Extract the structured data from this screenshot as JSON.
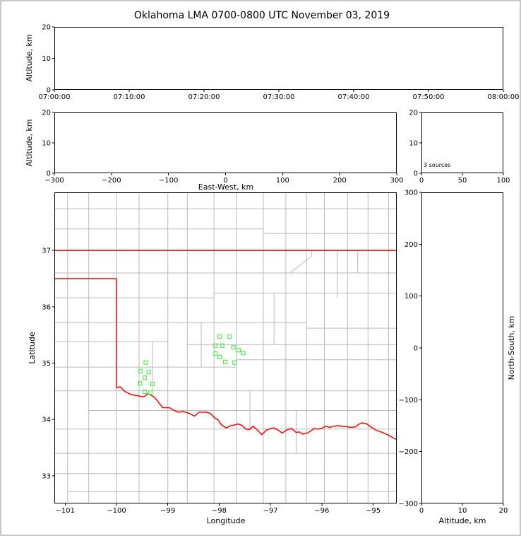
{
  "title": "Oklahoma LMA 0700-0800 UTC November 03, 2019",
  "colors": {
    "background": "#ffffff",
    "frame": "#c9c9c9",
    "axis": "#000000",
    "county_line": "#b9b9b9",
    "state_border": "#ff0000",
    "station_marker": "#5ce85c"
  },
  "chart_data": [
    {
      "id": "time_height",
      "type": "scatter",
      "ylabel": "Altitude, km",
      "ylim": [
        0,
        20
      ],
      "yticks": [
        0,
        10,
        20
      ],
      "xtick_labels": [
        "07:00:00",
        "07:10:00",
        "07:20:00",
        "07:30:00",
        "07:40:00",
        "07:50:00",
        "08:00:00"
      ],
      "xlim": [
        0,
        3600
      ],
      "points": []
    },
    {
      "id": "ew_height",
      "type": "scatter",
      "xlabel": "East-West, km",
      "ylabel": "Altitude, km",
      "xlim": [
        -300,
        300
      ],
      "xticks": [
        -300,
        -200,
        -100,
        0,
        100,
        200,
        300
      ],
      "ylim": [
        0,
        20
      ],
      "yticks": [
        0,
        10,
        20
      ],
      "points": []
    },
    {
      "id": "alt_histogram",
      "type": "line",
      "annotation": "3 sources",
      "xlim": [
        0,
        100
      ],
      "xticks": [
        0,
        50,
        100
      ],
      "ylim": [
        0,
        20
      ],
      "yticks": [
        0,
        10,
        20
      ],
      "points": []
    },
    {
      "id": "plan_view",
      "type": "scatter",
      "xlabel": "Longitude",
      "ylabel": "Latitude",
      "xlim": [
        -101.21,
        -94.54
      ],
      "xticks": [
        -101,
        -100,
        -99,
        -98,
        -97,
        -96,
        -95
      ],
      "ylim": [
        32.51,
        38.03
      ],
      "yticks": [
        33,
        34,
        35,
        36,
        37
      ],
      "stations": [
        [
          -99.43,
          35.01
        ],
        [
          -99.53,
          34.86
        ],
        [
          -99.37,
          34.84
        ],
        [
          -99.45,
          34.74
        ],
        [
          -99.54,
          34.64
        ],
        [
          -99.3,
          34.63
        ],
        [
          -99.45,
          34.49
        ],
        [
          -99.34,
          34.48
        ],
        [
          -97.99,
          35.47
        ],
        [
          -97.8,
          35.47
        ],
        [
          -98.07,
          35.31
        ],
        [
          -97.94,
          35.31
        ],
        [
          -97.72,
          35.28
        ],
        [
          -97.62,
          35.23
        ],
        [
          -97.53,
          35.18
        ],
        [
          -98.07,
          35.17
        ],
        [
          -97.99,
          35.11
        ],
        [
          -97.88,
          35.02
        ],
        [
          -97.7,
          35.01
        ]
      ],
      "state_border": [
        [
          [
            -101.21,
            37.0
          ],
          [
            -94.54,
            37.0
          ]
        ],
        [
          [
            -101.21,
            36.5
          ],
          [
            -100.0,
            36.5
          ],
          [
            -100.0,
            34.56
          ],
          [
            -99.93,
            34.58
          ],
          [
            -99.84,
            34.5
          ],
          [
            -99.71,
            34.44
          ],
          [
            -99.58,
            34.42
          ],
          [
            -99.47,
            34.4
          ],
          [
            -99.38,
            34.46
          ],
          [
            -99.27,
            34.4
          ],
          [
            -99.21,
            34.34
          ],
          [
            -99.1,
            34.21
          ],
          [
            -98.97,
            34.21
          ],
          [
            -98.87,
            34.16
          ],
          [
            -98.8,
            34.13
          ],
          [
            -98.7,
            34.14
          ],
          [
            -98.61,
            34.12
          ],
          [
            -98.48,
            34.06
          ],
          [
            -98.39,
            34.13
          ],
          [
            -98.26,
            34.13
          ],
          [
            -98.17,
            34.11
          ],
          [
            -98.09,
            34.03
          ],
          [
            -98.02,
            33.99
          ],
          [
            -97.95,
            33.9
          ],
          [
            -97.86,
            33.85
          ],
          [
            -97.78,
            33.89
          ],
          [
            -97.71,
            33.9
          ],
          [
            -97.63,
            33.92
          ],
          [
            -97.56,
            33.9
          ],
          [
            -97.48,
            33.83
          ],
          [
            -97.41,
            33.82
          ],
          [
            -97.34,
            33.88
          ],
          [
            -97.25,
            33.81
          ],
          [
            -97.17,
            33.73
          ],
          [
            -97.08,
            33.81
          ],
          [
            -97.0,
            33.84
          ],
          [
            -96.93,
            33.85
          ],
          [
            -96.85,
            33.81
          ],
          [
            -96.77,
            33.76
          ],
          [
            -96.67,
            33.82
          ],
          [
            -96.59,
            33.84
          ],
          [
            -96.5,
            33.77
          ],
          [
            -96.44,
            33.78
          ],
          [
            -96.37,
            33.74
          ],
          [
            -96.28,
            33.76
          ],
          [
            -96.21,
            33.8
          ],
          [
            -96.15,
            33.84
          ],
          [
            -96.07,
            33.83
          ],
          [
            -96.0,
            33.84
          ],
          [
            -95.93,
            33.88
          ],
          [
            -95.85,
            33.86
          ],
          [
            -95.76,
            33.88
          ],
          [
            -95.68,
            33.89
          ],
          [
            -95.6,
            33.88
          ],
          [
            -95.5,
            33.87
          ],
          [
            -95.44,
            33.86
          ],
          [
            -95.34,
            33.87
          ],
          [
            -95.29,
            33.91
          ],
          [
            -95.22,
            33.94
          ],
          [
            -95.12,
            33.92
          ],
          [
            -95.05,
            33.87
          ],
          [
            -94.94,
            33.81
          ],
          [
            -94.82,
            33.77
          ],
          [
            -94.72,
            33.73
          ],
          [
            -94.54,
            33.64
          ]
        ]
      ],
      "county_lines": [
        [
          [
            -100.95,
            32.51
          ],
          [
            -100.95,
            38.03
          ]
        ],
        [
          [
            -100.54,
            32.51
          ],
          [
            -100.54,
            38.03
          ]
        ],
        [
          [
            -100.0,
            32.51
          ],
          [
            -100.0,
            38.03
          ]
        ],
        [
          [
            -99.56,
            32.51
          ],
          [
            -99.56,
            38.03
          ]
        ],
        [
          [
            -99.0,
            32.51
          ],
          [
            -99.0,
            38.03
          ]
        ],
        [
          [
            -98.62,
            32.51
          ],
          [
            -98.62,
            38.03
          ]
        ],
        [
          [
            -98.1,
            32.51
          ],
          [
            -98.1,
            38.03
          ]
        ],
        [
          [
            -97.66,
            32.51
          ],
          [
            -97.66,
            38.03
          ]
        ],
        [
          [
            -97.14,
            32.51
          ],
          [
            -97.14,
            38.03
          ]
        ],
        [
          [
            -96.7,
            32.51
          ],
          [
            -96.7,
            38.03
          ]
        ],
        [
          [
            -96.3,
            32.51
          ],
          [
            -96.3,
            38.03
          ]
        ],
        [
          [
            -95.95,
            32.51
          ],
          [
            -95.95,
            38.03
          ]
        ],
        [
          [
            -95.5,
            32.51
          ],
          [
            -95.5,
            38.03
          ]
        ],
        [
          [
            -95.1,
            32.51
          ],
          [
            -95.1,
            38.03
          ]
        ],
        [
          [
            -94.7,
            32.51
          ],
          [
            -94.7,
            38.03
          ]
        ],
        [
          [
            -101.21,
            37.74
          ],
          [
            -94.54,
            37.74
          ]
        ],
        [
          [
            -101.21,
            37.38
          ],
          [
            -97.14,
            37.38
          ]
        ],
        [
          [
            -97.14,
            37.3
          ],
          [
            -94.54,
            37.3
          ]
        ],
        [
          [
            -101.21,
            36.6
          ],
          [
            -94.54,
            36.6
          ]
        ],
        [
          [
            -101.21,
            36.16
          ],
          [
            -98.1,
            36.16
          ]
        ],
        [
          [
            -98.1,
            36.24
          ],
          [
            -94.54,
            36.24
          ]
        ],
        [
          [
            -101.21,
            35.72
          ],
          [
            -96.3,
            35.72
          ]
        ],
        [
          [
            -96.3,
            35.62
          ],
          [
            -94.54,
            35.62
          ]
        ],
        [
          [
            -101.21,
            35.38
          ],
          [
            -99.0,
            35.38
          ]
        ],
        [
          [
            -98.62,
            35.33
          ],
          [
            -94.54,
            35.33
          ]
        ],
        [
          [
            -101.21,
            34.93
          ],
          [
            -97.66,
            34.93
          ]
        ],
        [
          [
            -97.66,
            35.06
          ],
          [
            -94.54,
            35.06
          ]
        ],
        [
          [
            -101.21,
            34.51
          ],
          [
            -94.54,
            34.51
          ]
        ],
        [
          [
            -100.54,
            34.16
          ],
          [
            -94.54,
            34.16
          ]
        ],
        [
          [
            -101.21,
            33.83
          ],
          [
            -94.54,
            33.83
          ]
        ],
        [
          [
            -101.21,
            33.4
          ],
          [
            -94.54,
            33.4
          ]
        ],
        [
          [
            -101.21,
            33.04
          ],
          [
            -94.54,
            33.04
          ]
        ],
        [
          [
            -100.95,
            32.72
          ],
          [
            -94.54,
            32.72
          ]
        ],
        [
          [
            -96.62,
            36.6
          ],
          [
            -96.2,
            36.9
          ],
          [
            -96.2,
            37.0
          ]
        ],
        [
          [
            -95.3,
            36.6
          ],
          [
            -95.3,
            37.0
          ]
        ],
        [
          [
            -99.3,
            34.51
          ],
          [
            -99.3,
            35.38
          ]
        ],
        [
          [
            -98.35,
            34.93
          ],
          [
            -98.35,
            35.72
          ]
        ],
        [
          [
            -97.4,
            33.83
          ],
          [
            -97.4,
            34.51
          ]
        ],
        [
          [
            -96.5,
            33.4
          ],
          [
            -96.5,
            34.16
          ]
        ],
        [
          [
            -95.7,
            36.16
          ],
          [
            -95.7,
            37.0
          ]
        ],
        [
          [
            -96.93,
            35.33
          ],
          [
            -96.93,
            36.24
          ]
        ]
      ]
    },
    {
      "id": "ns_height",
      "type": "scatter",
      "xlabel": "Altitude, km",
      "ylabel": "North-South, km",
      "xlim": [
        0,
        20
      ],
      "xticks": [
        0,
        10,
        20
      ],
      "ylim": [
        -300,
        300
      ],
      "yticks": [
        300,
        200,
        100,
        0,
        -100,
        -200,
        -300
      ],
      "points": []
    }
  ]
}
